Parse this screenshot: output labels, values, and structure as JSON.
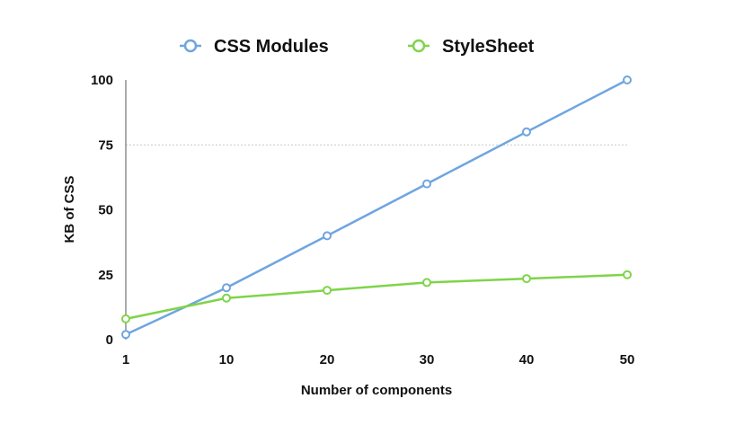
{
  "chart_data": {
    "type": "line",
    "title": "",
    "xlabel": "Number of components",
    "ylabel": "KB of CSS",
    "categories": [
      "1",
      "10",
      "20",
      "30",
      "40",
      "50"
    ],
    "x": [
      1,
      10,
      20,
      30,
      40,
      50
    ],
    "ylim": [
      0,
      100
    ],
    "yticks": [
      "0",
      "25",
      "50",
      "75",
      "100"
    ],
    "ytick_values": [
      0,
      25,
      50,
      75,
      100
    ],
    "grid": "single dotted line at 75",
    "legend_position": "top-center",
    "series": [
      {
        "name": "CSS Modules",
        "color": "#6fa5e0",
        "values": [
          2,
          20,
          40,
          60,
          80,
          100
        ]
      },
      {
        "name": "StyleSheet",
        "color": "#7fd44a",
        "values": [
          8,
          16,
          19,
          22,
          23.5,
          25
        ]
      }
    ]
  }
}
